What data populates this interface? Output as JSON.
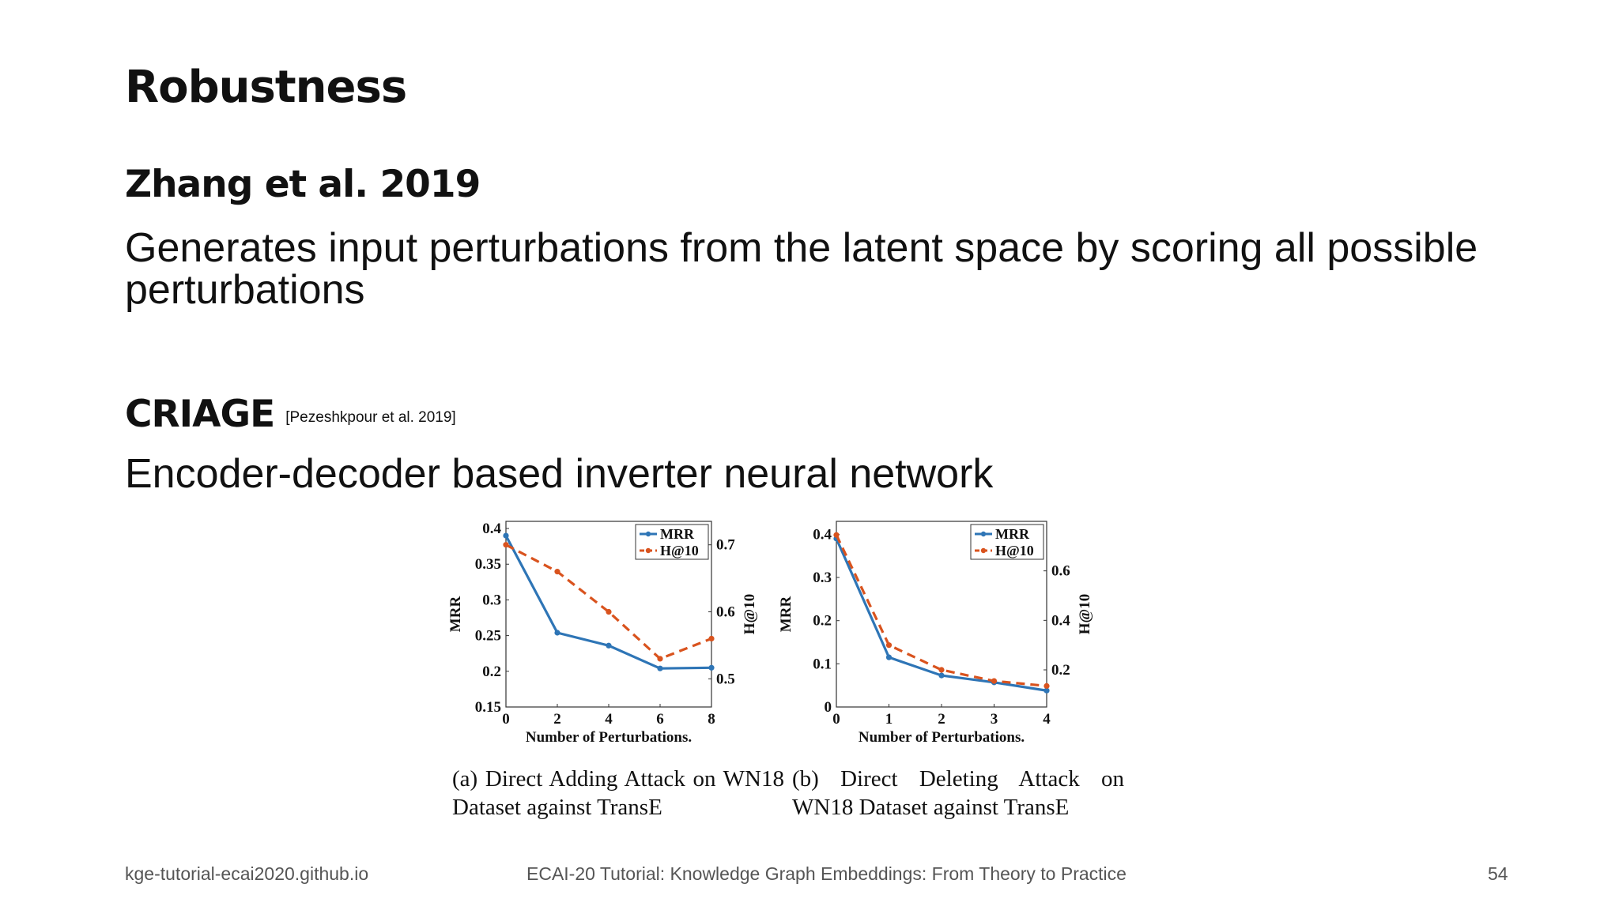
{
  "slide": {
    "title": "Robustness",
    "section1": {
      "heading": "Zhang et al. 2019",
      "text": "Generates input perturbations from the latent space by scoring all possible perturbations"
    },
    "section2": {
      "heading": "CRIAGE",
      "citation": "[Pezeshkpour et al. 2019]",
      "text": "Encoder-decoder based inverter neural network"
    }
  },
  "footer": {
    "left": "kge-tutorial-ecai2020.github.io",
    "center": "ECAI-20 Tutorial: Knowledge Graph Embeddings: From Theory to Practice",
    "page": "54"
  },
  "colors": {
    "mrr": "#2e75b6",
    "h10": "#d9531e"
  },
  "chart_data": [
    {
      "type": "line",
      "caption": "(a) Direct Adding Attack on WN18 Dataset against TransE",
      "xlabel": "Number of Perturbations.",
      "ylabel": "MRR",
      "y2label": "H@10",
      "x": [
        0,
        2,
        4,
        6,
        8
      ],
      "xticks": [
        "0",
        "2",
        "4",
        "6",
        "8"
      ],
      "xlim": [
        0,
        8
      ],
      "ylim": [
        0.15,
        0.41
      ],
      "yticks": [
        "0.15",
        "0.2",
        "0.25",
        "0.3",
        "0.35",
        "0.4"
      ],
      "y2lim": [
        0.458,
        0.735
      ],
      "y2ticks": [
        "0.5",
        "0.6",
        "0.7"
      ],
      "legend_position": "top-right",
      "series": [
        {
          "name": "MRR",
          "axis": "left",
          "style": "solid",
          "values": [
            0.39,
            0.254,
            0.236,
            0.204,
            0.205
          ]
        },
        {
          "name": "H@10",
          "axis": "right",
          "style": "dashed",
          "values": [
            0.7,
            0.66,
            0.6,
            0.53,
            0.56
          ]
        }
      ]
    },
    {
      "type": "line",
      "caption": "(b) Direct Deleting Attack on WN18 Dataset against TransE",
      "xlabel": "Number of Perturbations.",
      "ylabel": "MRR",
      "y2label": "H@10",
      "x": [
        0,
        1,
        2,
        3,
        4
      ],
      "xticks": [
        "0",
        "1",
        "2",
        "3",
        "4"
      ],
      "xlim": [
        0,
        4
      ],
      "ylim": [
        0,
        0.43
      ],
      "yticks": [
        "0",
        "0.1",
        "0.2",
        "0.3",
        "0.4"
      ],
      "y2lim": [
        0.05,
        0.8
      ],
      "y2ticks": [
        "0.2",
        "0.4",
        "0.6"
      ],
      "legend_position": "top-right",
      "series": [
        {
          "name": "MRR",
          "axis": "left",
          "style": "solid",
          "values": [
            0.39,
            0.115,
            0.073,
            0.057,
            0.038
          ]
        },
        {
          "name": "H@10",
          "axis": "right",
          "style": "dashed",
          "values": [
            0.745,
            0.3,
            0.2,
            0.155,
            0.135
          ]
        }
      ]
    }
  ]
}
